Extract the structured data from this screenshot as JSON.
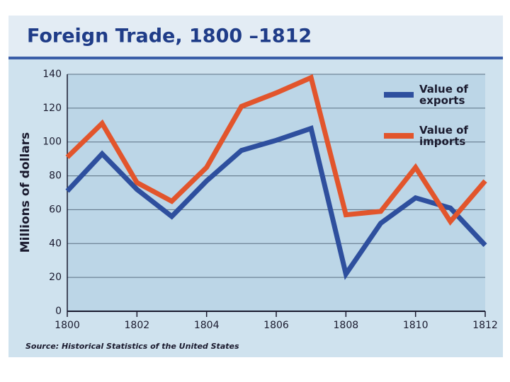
{
  "chart_data": {
    "type": "line",
    "title": "Foreign Trade, 1800 –1812",
    "y_label": "Millions of dollars",
    "source": "Source: Historical Statistics of the United States",
    "x": [
      1800,
      1801,
      1802,
      1803,
      1804,
      1805,
      1806,
      1807,
      1808,
      1809,
      1810,
      1811,
      1812
    ],
    "xlim": [
      1800,
      1812
    ],
    "xticks": [
      1800,
      1802,
      1804,
      1806,
      1808,
      1810,
      1812
    ],
    "ylim": [
      0,
      140
    ],
    "yticks": [
      0,
      20,
      40,
      60,
      80,
      100,
      120,
      140
    ],
    "grid": true,
    "legend": "upper right",
    "series": [
      {
        "name": "Value of exports",
        "color": "#2e4f9e",
        "values": [
          71,
          93,
          72,
          56,
          77,
          95,
          101,
          108,
          22,
          52,
          67,
          61,
          39
        ]
      },
      {
        "name": "Value of imports",
        "color": "#e2552c",
        "values": [
          91,
          111,
          76,
          65,
          85,
          121,
          129,
          138,
          57,
          59,
          85,
          53,
          77
        ]
      }
    ]
  }
}
